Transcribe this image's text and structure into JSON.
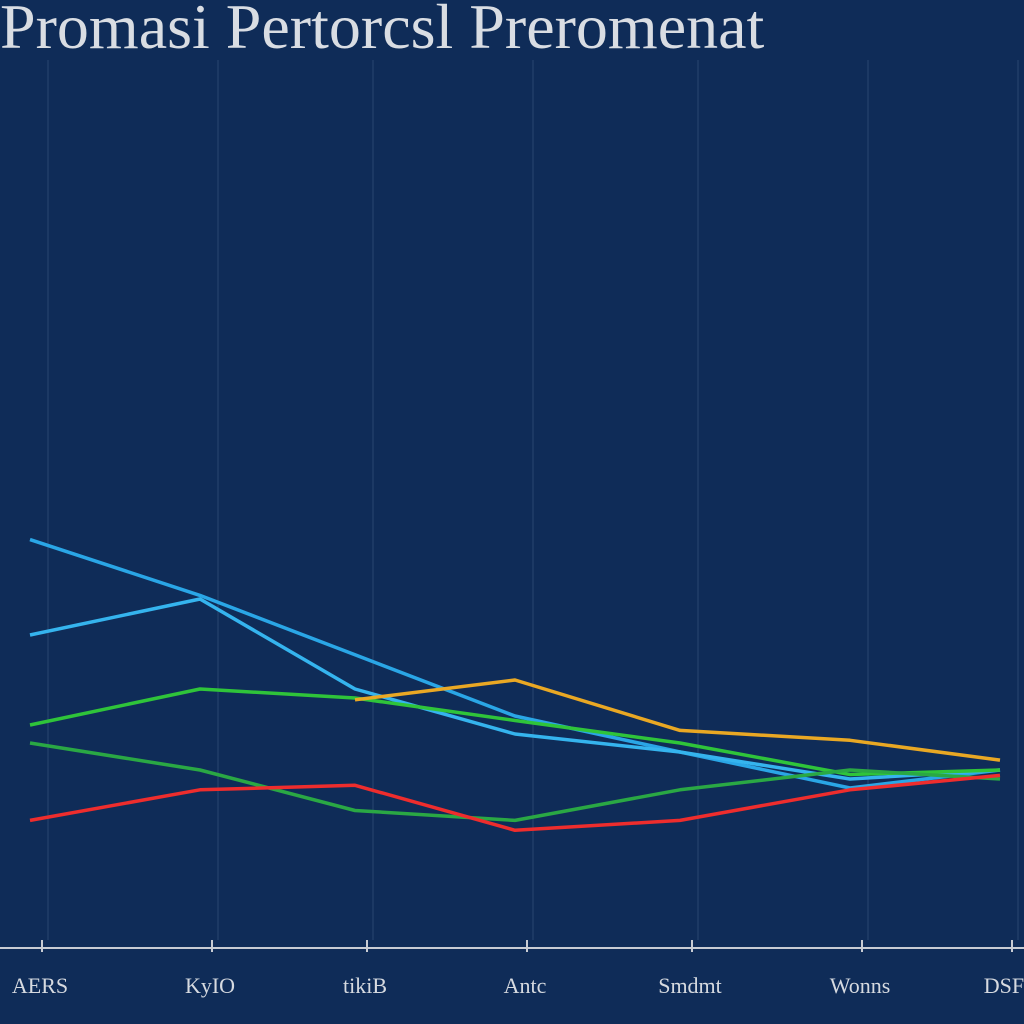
{
  "chart_data": {
    "type": "line",
    "title": "Promasi Pertorcsl Preromenat",
    "categories": [
      "AERS",
      "KyIO",
      "tikiB",
      "Antc",
      "Smdmt",
      "Wonns",
      "DSFS"
    ],
    "ylim": [
      0,
      100
    ],
    "grid": true,
    "series": [
      {
        "color": "#2aa6e6",
        "values": [
          45.6,
          39.4,
          32.8,
          26,
          22,
          18,
          20
        ]
      },
      {
        "color": "#35b4ee",
        "values": [
          35,
          39,
          29,
          24,
          22,
          19,
          20
        ]
      },
      {
        "color": "#2fc43a",
        "values": [
          25,
          29,
          28,
          25.5,
          23,
          19.5,
          20
        ]
      },
      {
        "color": "#2aa844",
        "values": [
          23,
          20,
          15.5,
          14.4,
          17.8,
          20,
          19
        ]
      },
      {
        "color": "#ee2d2d",
        "values": [
          14.4,
          17.8,
          18.3,
          13.3,
          14.4,
          17.8,
          19.4
        ]
      },
      {
        "color": "#e9a824",
        "values": [
          null,
          null,
          27.8,
          30,
          24.4,
          23.3,
          21.1
        ]
      }
    ]
  }
}
